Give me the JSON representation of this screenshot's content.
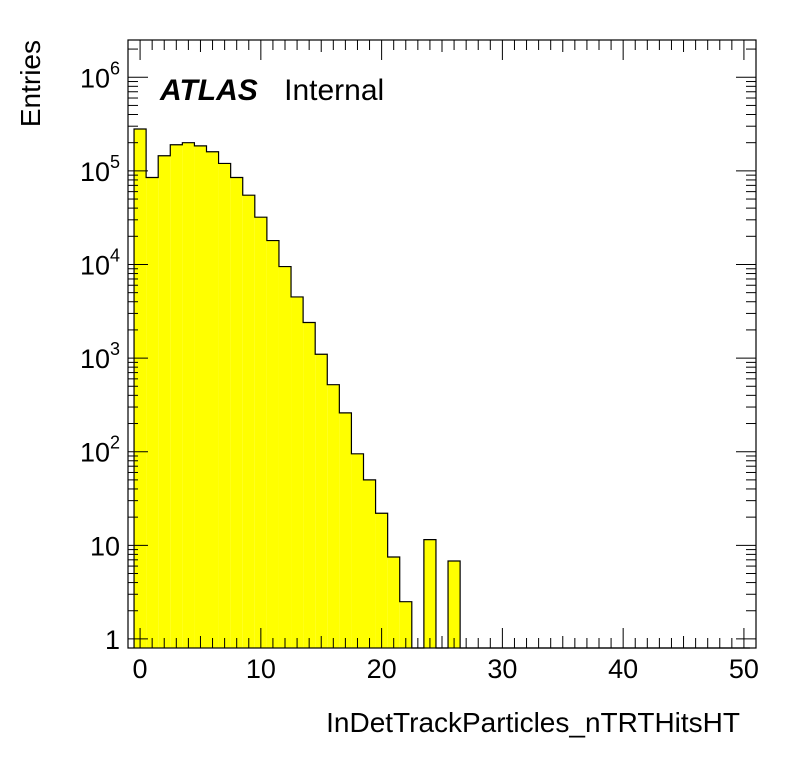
{
  "chart_data": {
    "type": "histogram",
    "xlabel": "InDetTrackParticles_nTRTHitsHT",
    "ylabel": "Entries",
    "xlim": [
      -1,
      51
    ],
    "ylim": [
      0.8,
      2500000
    ],
    "yscale": "log",
    "grid": false,
    "bin_width": 1,
    "bin_edges": [
      -0.5,
      50.5
    ],
    "values": [
      280000,
      85000,
      145000,
      190000,
      200000,
      185000,
      160000,
      120000,
      85000,
      55000,
      32000,
      18000,
      9500,
      4500,
      2400,
      1100,
      520,
      260,
      95,
      50,
      22,
      7.5,
      2.5,
      0.8,
      11.5,
      0.8,
      6.8,
      0,
      0,
      0,
      0,
      0,
      0,
      0,
      0,
      0,
      0,
      0,
      0,
      0,
      0,
      0,
      0,
      0,
      0,
      0,
      0,
      0,
      0,
      0,
      0
    ],
    "x_ticks": [
      0,
      10,
      20,
      30,
      40,
      50
    ],
    "x_tick_labels": [
      "0",
      "10",
      "20",
      "30",
      "40",
      "50"
    ],
    "y_ticks": [
      1,
      10,
      100,
      1000,
      10000,
      100000,
      1000000
    ],
    "y_tick_labels": [
      {
        "base": "1",
        "exp": ""
      },
      {
        "base": "10",
        "exp": ""
      },
      {
        "base": "10",
        "exp": "2"
      },
      {
        "base": "10",
        "exp": "3"
      },
      {
        "base": "10",
        "exp": "4"
      },
      {
        "base": "10",
        "exp": "5"
      },
      {
        "base": "10",
        "exp": "6"
      }
    ],
    "fill_color": "#ffff00",
    "line_color": "#000000",
    "annotation": {
      "bold": "ATLAS",
      "normal": "Internal"
    }
  }
}
